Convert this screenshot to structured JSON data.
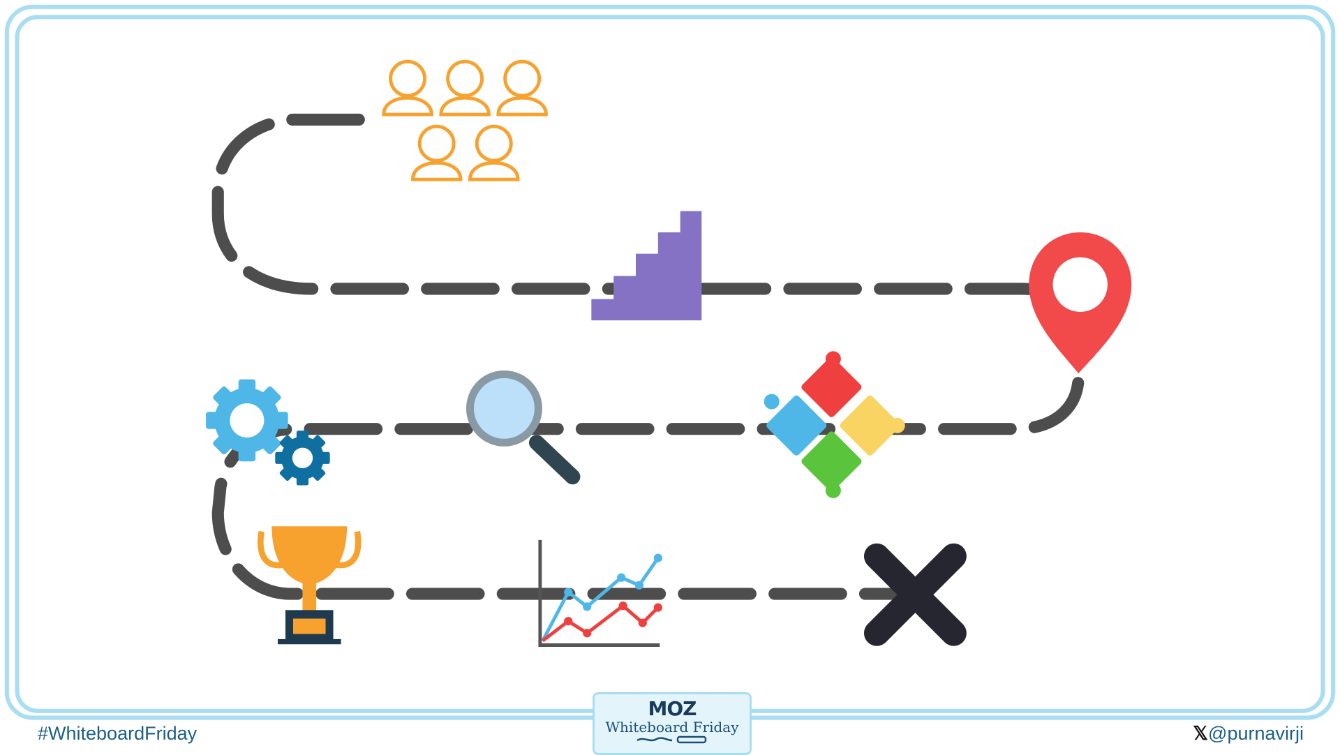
{
  "footer": {
    "hashtag": "#WhiteboardFriday",
    "x_icon": "x-logo-icon",
    "handle": "@purnavirji"
  },
  "badge": {
    "brand": "MOZ",
    "title": "Whiteboard Friday"
  },
  "colors": {
    "frame": "#a9def2",
    "path": "#4d4d4d",
    "people": "#f7a12f",
    "stairs": "#8672c4",
    "pin": "#f24a4a",
    "gear_light": "#4fb6e8",
    "gear_dark": "#0e6fa0",
    "trophy": "#f7a12f",
    "x_mark": "#262630"
  },
  "icons": [
    "people-group-icon",
    "stairs-icon",
    "location-pin-icon",
    "gears-icon",
    "magnifier-icon",
    "puzzle-icon",
    "trophy-icon",
    "line-chart-icon",
    "x-mark-icon"
  ]
}
